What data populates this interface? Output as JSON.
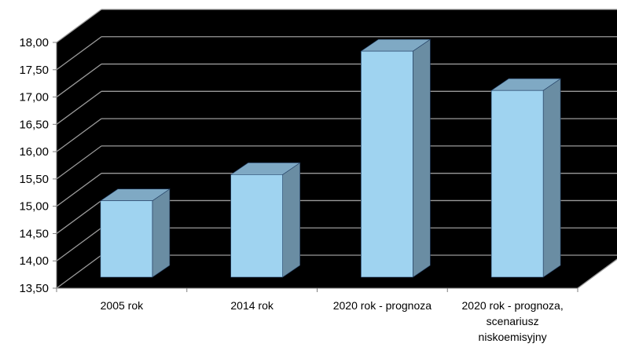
{
  "chart_data": {
    "type": "bar",
    "categories": [
      [
        "2005 rok"
      ],
      [
        "2014 rok"
      ],
      [
        "2020 rok - prognoza"
      ],
      [
        "2020 rok - prognoza,",
        "scenariusz",
        "niskoemisyjny"
      ]
    ],
    "values": [
      15.1,
      15.58,
      17.84,
      17.12
    ],
    "ylim": [
      13.5,
      18.0
    ],
    "yticks": [
      "13,50",
      "14,00",
      "14,50",
      "15,00",
      "15,50",
      "16,00",
      "16,50",
      "17,00",
      "17,50",
      "18,00"
    ],
    "grid": true,
    "title": "",
    "xlabel": "",
    "ylabel": ""
  },
  "colors": {
    "plot_background": "#000000",
    "gridline": "#9a9a9a",
    "bar_front": "#9fd3f0",
    "bar_top": "#7fa9c4",
    "bar_side": "#6a8da3",
    "bar_outline": "#1e3a5f"
  }
}
